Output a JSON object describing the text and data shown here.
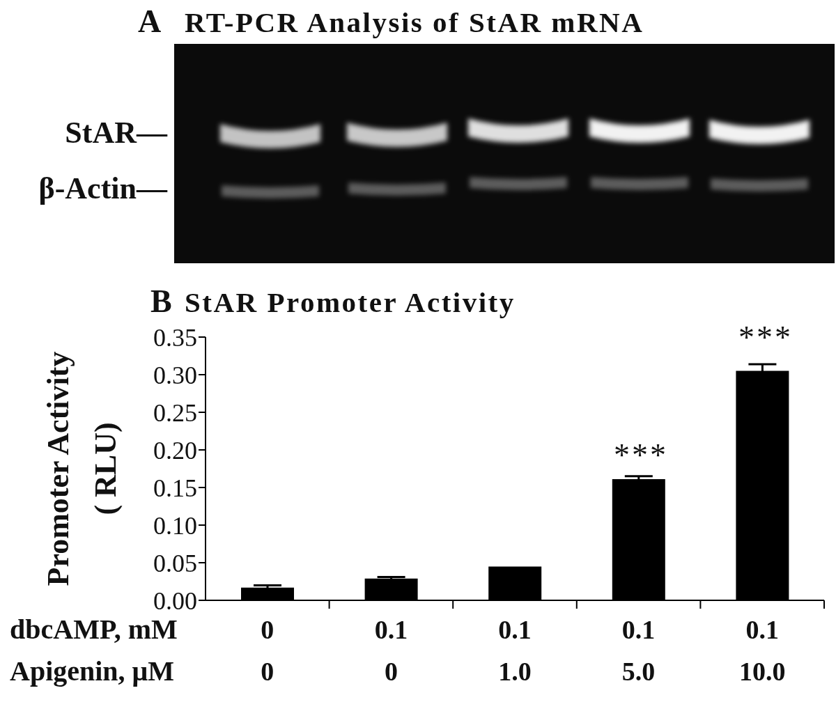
{
  "chart_data": [
    {
      "type": "other",
      "title": "RT-PCR Analysis of StAR mRNA",
      "annotations": [
        "A",
        "StAR—",
        "β-Actin—"
      ]
    },
    {
      "type": "bar",
      "title": "StAR Promoter Activity",
      "ylabel": "Promoter Activity\n( RLU)",
      "categories": [
        "0\n0",
        "0.1\n0",
        "0.1\n1.0",
        "0.1\n5.0",
        "0.1\n10.0"
      ],
      "values": [
        0.017,
        0.029,
        0.045,
        0.161,
        0.305
      ],
      "errors": [
        0.003,
        0.002,
        null,
        0.004,
        0.009
      ],
      "color": "#000000",
      "ylim": [
        0,
        0.35
      ],
      "yticks": [
        {
          "value": 0,
          "label": "0.00"
        },
        {
          "value": 0.05,
          "label": "0.05"
        },
        {
          "value": 0.1,
          "label": "0.10"
        },
        {
          "value": 0.15,
          "label": "0.15"
        },
        {
          "value": 0.2,
          "label": "0.20"
        },
        {
          "value": 0.25,
          "label": "0.25"
        },
        {
          "value": 0.3,
          "label": "0.30"
        },
        {
          "value": 0.35,
          "label": "0.35"
        }
      ],
      "annotations": [
        "B",
        "dbcAMP, mM",
        "Apigenin, μM",
        "***",
        "***"
      ]
    }
  ]
}
